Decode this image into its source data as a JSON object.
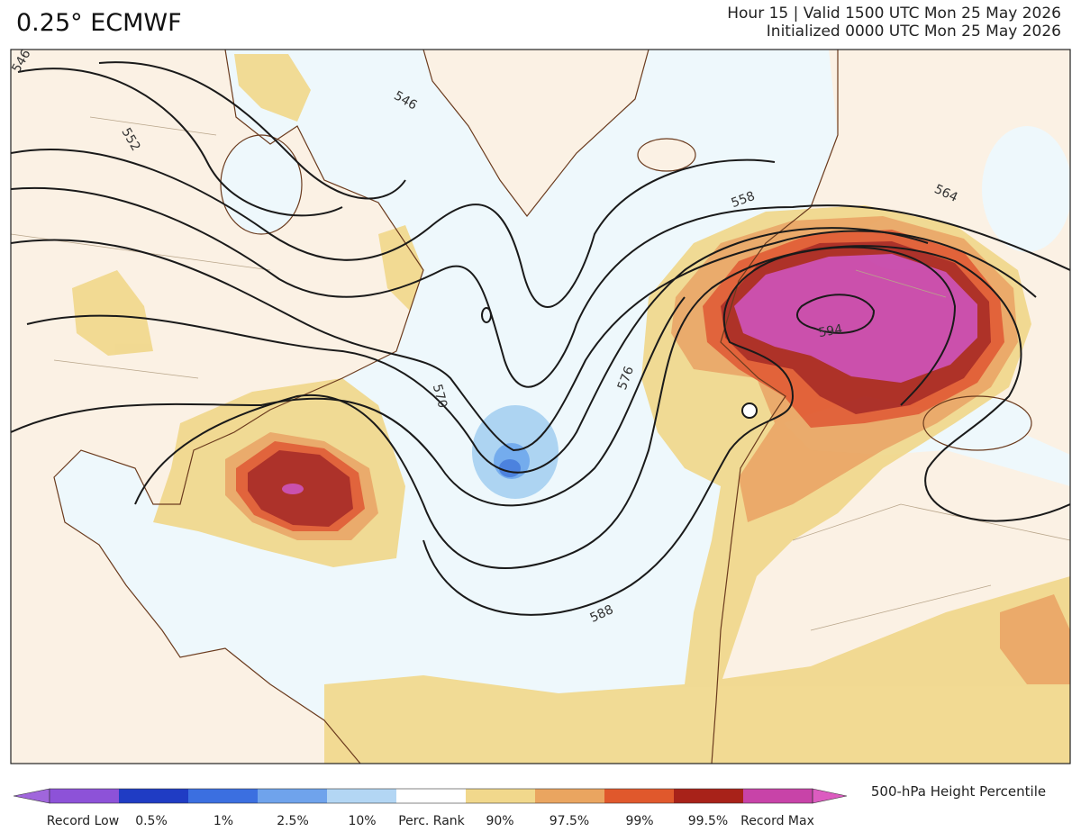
{
  "header": {
    "title": "0.25° ECMWF",
    "valid": "Hour 15 | Valid 1500 UTC Mon 25 May 2026",
    "initialized": "Initialized 0000 UTC Mon 25 May 2026"
  },
  "map": {
    "contour_labels": [
      "546",
      "546",
      "552",
      "558",
      "564",
      "570",
      "576",
      "588",
      "594"
    ]
  },
  "colorbar": {
    "title": "500-hPa Height Percentile",
    "labels": [
      "Record Low",
      "0.5%",
      "1%",
      "2.5%",
      "10%",
      "Perc. Rank",
      "90%",
      "97.5%",
      "99%",
      "99.5%",
      "Record Max"
    ]
  }
}
